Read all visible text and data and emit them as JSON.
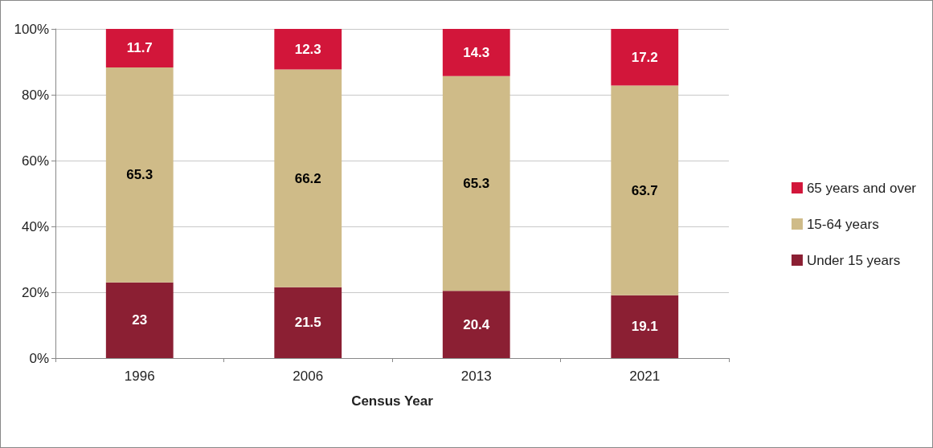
{
  "chart_data": {
    "type": "bar",
    "stacked": true,
    "xlabel": "Census Year",
    "categories": [
      "1996",
      "2006",
      "2013",
      "2021"
    ],
    "series": [
      {
        "name": "Under 15 years",
        "color": "#8b1f33",
        "values": [
          23,
          21.5,
          20.4,
          19.1
        ]
      },
      {
        "name": "15-64 years",
        "color": "#cfbb88",
        "values": [
          65.3,
          66.2,
          65.3,
          63.7
        ]
      },
      {
        "name": "65 years and over",
        "color": "#d2163a",
        "values": [
          11.7,
          12.3,
          14.3,
          17.2
        ]
      }
    ],
    "ylim": [
      0,
      100
    ],
    "yticks": [
      {
        "value": 0,
        "label": "0%"
      },
      {
        "value": 20,
        "label": "20%"
      },
      {
        "value": 40,
        "label": "40%"
      },
      {
        "value": 60,
        "label": "60%"
      },
      {
        "value": 80,
        "label": "80%"
      },
      {
        "value": 100,
        "label": "100%"
      }
    ],
    "grid": "y",
    "legend": "right",
    "data_labels": true
  }
}
